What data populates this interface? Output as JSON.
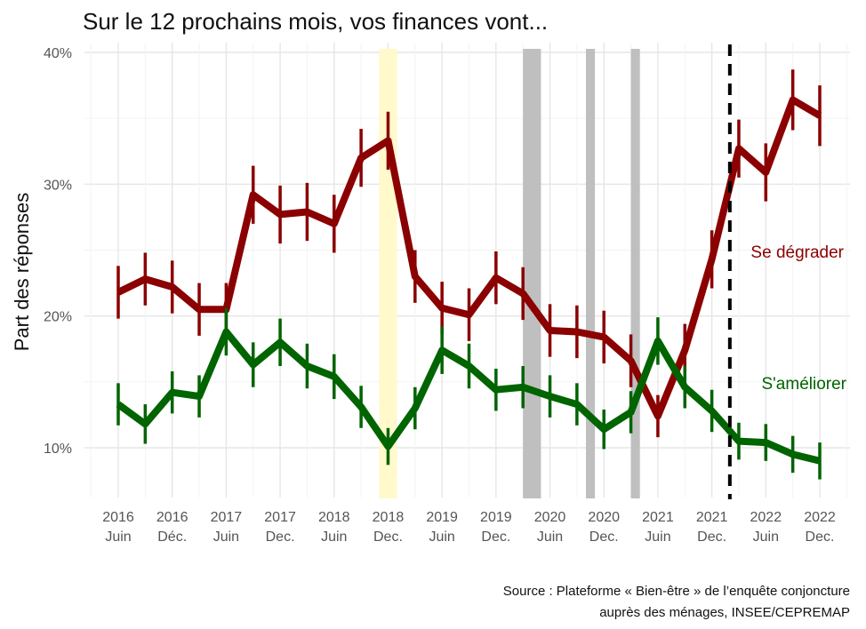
{
  "chart_data": {
    "type": "line",
    "title": "Sur le 12 prochains mois, vos finances vont...",
    "ylabel": "Part des réponses",
    "xlabel": "",
    "ylim": [
      6.5,
      41
    ],
    "y_ticks": [
      10,
      20,
      30,
      40
    ],
    "y_tick_labels": [
      "10%",
      "20%",
      "30%",
      "40%"
    ],
    "x_tick_labels": [
      {
        "year": "2016",
        "month": "Juin"
      },
      {
        "year": "2016",
        "month": "Déc."
      },
      {
        "year": "2017",
        "month": "Juin"
      },
      {
        "year": "2017",
        "month": "Dec."
      },
      {
        "year": "2018",
        "month": "Juin"
      },
      {
        "year": "2018",
        "month": "Dec."
      },
      {
        "year": "2019",
        "month": "Juin"
      },
      {
        "year": "2019",
        "month": "Dec."
      },
      {
        "year": "2020",
        "month": "Juin"
      },
      {
        "year": "2020",
        "month": "Dec."
      },
      {
        "year": "2021",
        "month": "Juin"
      },
      {
        "year": "2021",
        "month": "Dec."
      },
      {
        "year": "2022",
        "month": "Juin"
      },
      {
        "year": "2022",
        "month": "Dec."
      }
    ],
    "x_tick_dates": [
      "2016-06",
      "2016-12",
      "2017-06",
      "2017-12",
      "2018-06",
      "2018-12",
      "2019-06",
      "2019-12",
      "2020-06",
      "2020-12",
      "2021-06",
      "2021-12",
      "2022-06",
      "2022-12"
    ],
    "x": [
      "2016-06",
      "2016-09",
      "2016-12",
      "2017-03",
      "2017-06",
      "2017-09",
      "2017-12",
      "2018-03",
      "2018-06",
      "2018-09",
      "2018-12",
      "2019-03",
      "2019-06",
      "2019-09",
      "2019-12",
      "2020-03",
      "2020-06",
      "2020-09",
      "2020-12",
      "2021-03",
      "2021-06",
      "2021-09",
      "2021-12",
      "2022-03",
      "2022-06",
      "2022-09",
      "2022-12"
    ],
    "series": [
      {
        "name": "Se dégrader",
        "color": "#8b0000",
        "values": [
          21.8,
          22.8,
          22.2,
          20.5,
          20.5,
          29.2,
          27.7,
          27.9,
          27.0,
          32.0,
          33.3,
          23.0,
          20.6,
          20.1,
          22.9,
          21.7,
          18.9,
          18.8,
          18.4,
          16.6,
          12.4,
          17.4,
          24.3,
          32.7,
          30.9,
          36.4,
          35.2
        ],
        "error": [
          2.0,
          2.0,
          2.0,
          2.0,
          2.0,
          2.2,
          2.2,
          2.2,
          2.2,
          2.2,
          2.2,
          2.0,
          2.0,
          2.0,
          2.0,
          2.0,
          2.0,
          2.0,
          2.0,
          2.0,
          1.6,
          2.0,
          2.2,
          2.2,
          2.2,
          2.3,
          2.3
        ],
        "label": "Se dégrader"
      },
      {
        "name": "S'améliorer",
        "color": "#006400",
        "values": [
          13.3,
          11.8,
          14.2,
          13.9,
          18.8,
          16.3,
          18.0,
          16.2,
          15.4,
          13.1,
          10.1,
          13.0,
          17.4,
          16.2,
          14.4,
          14.6,
          13.9,
          13.3,
          11.4,
          12.7,
          18.1,
          14.6,
          12.8,
          10.5,
          10.4,
          9.5,
          9.0
        ],
        "error": [
          1.6,
          1.5,
          1.6,
          1.6,
          1.8,
          1.7,
          1.8,
          1.7,
          1.7,
          1.6,
          1.4,
          1.6,
          1.8,
          1.7,
          1.6,
          1.6,
          1.6,
          1.6,
          1.5,
          1.6,
          1.8,
          1.6,
          1.6,
          1.4,
          1.4,
          1.4,
          1.4
        ],
        "label": "S'améliorer"
      }
    ],
    "shaded_periods": [
      {
        "from": "2018-11",
        "to": "2019-01",
        "color": "#fff9cc"
      },
      {
        "from": "2020-03",
        "to": "2020-05",
        "color": "#bfbfbf"
      },
      {
        "from": "2020-10",
        "to": "2020-11",
        "color": "#bfbfbf"
      },
      {
        "from": "2021-03",
        "to": "2021-04",
        "color": "#bfbfbf"
      }
    ],
    "vertical_line": {
      "at": "2022-02",
      "style": "dashed",
      "color": "#000000"
    },
    "grid": true,
    "source": [
      "Source : Plateforme « Bien-être » de l’enquête conjoncture",
      "auprès des ménages, INSEE/CEPREMAP"
    ]
  }
}
